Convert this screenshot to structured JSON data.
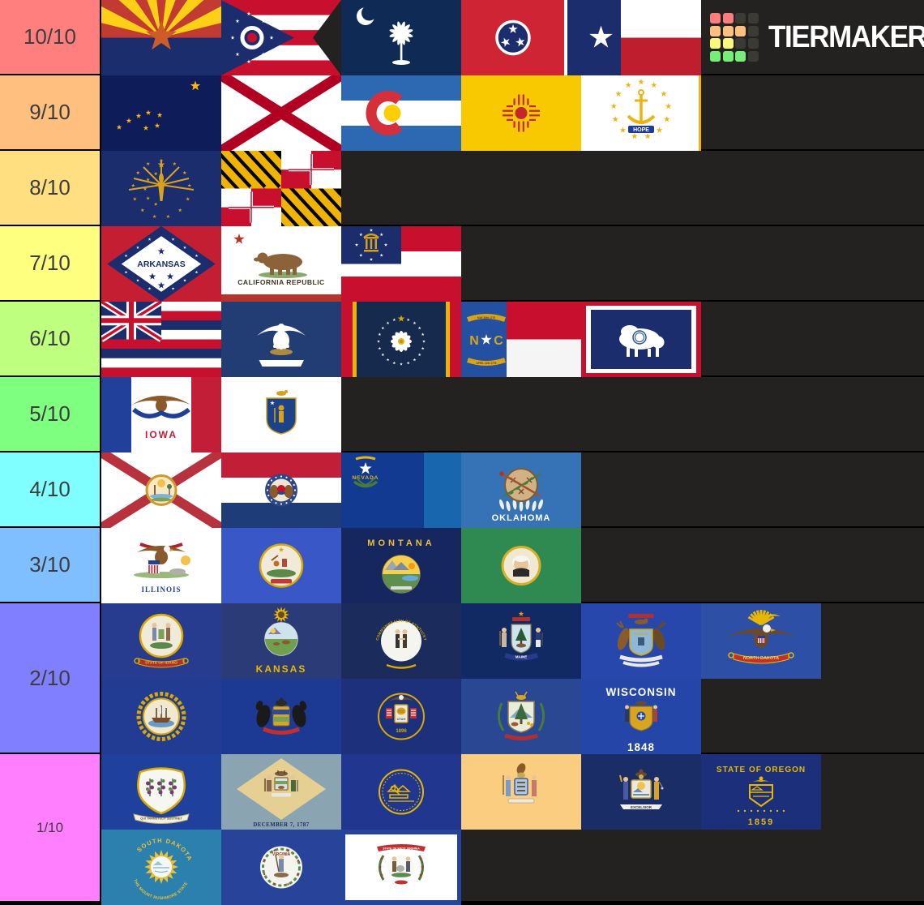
{
  "logo": {
    "brand": "TIERMAKER",
    "grid_colors": [
      "#fb7c7c",
      "#fcbf80",
      "#f8f87e",
      "#77ee77"
    ],
    "grid_dark": "#3b3b36"
  },
  "tiers": [
    {
      "label": "10/10",
      "color": "#ff7f7f",
      "rows": [
        [
          "arizona",
          "ohio",
          "south-carolina",
          "tennessee",
          "texas"
        ]
      ]
    },
    {
      "label": "9/10",
      "color": "#ffbf7f",
      "rows": [
        [
          "alaska",
          "alabama",
          "colorado",
          "new-mexico",
          "rhode-island"
        ]
      ]
    },
    {
      "label": "8/10",
      "color": "#ffdf80",
      "rows": [
        [
          "indiana",
          "maryland"
        ]
      ]
    },
    {
      "label": "7/10",
      "color": "#ffff7f",
      "rows": [
        [
          "arkansas",
          "california",
          "georgia"
        ]
      ]
    },
    {
      "label": "6/10",
      "color": "#bfff7f",
      "rows": [
        [
          "hawaii",
          "louisiana",
          "mississippi",
          "north-carolina",
          "wyoming"
        ]
      ]
    },
    {
      "label": "5/10",
      "color": "#7fff7f",
      "rows": [
        [
          "iowa",
          "massachusetts"
        ]
      ]
    },
    {
      "label": "4/10",
      "color": "#7fffff",
      "rows": [
        [
          "florida",
          "missouri",
          "nevada",
          "oklahoma"
        ]
      ]
    },
    {
      "label": "3/10",
      "color": "#7fbfff",
      "rows": [
        [
          "illinois",
          "minnesota",
          "montana",
          "washington"
        ]
      ]
    },
    {
      "label": "2/10",
      "color": "#7f7fff",
      "rows": [
        [
          "idaho",
          "kansas",
          "kentucky",
          "maine",
          "michigan",
          "north-dakota"
        ],
        [
          "new-hampshire",
          "pennsylvania",
          "utah",
          "vermont",
          "wisconsin"
        ]
      ]
    },
    {
      "label": "1/10",
      "color": "#ff7fff",
      "rows": [
        [
          "connecticut",
          "delaware",
          "nebraska",
          "new-jersey",
          "new-york",
          "oregon"
        ],
        [
          "south-dakota",
          "virginia",
          "west-virginia"
        ]
      ]
    }
  ],
  "flags": {
    "arizona": {
      "name": "Arizona"
    },
    "ohio": {
      "name": "Ohio"
    },
    "south-carolina": {
      "name": "South Carolina"
    },
    "tennessee": {
      "name": "Tennessee"
    },
    "texas": {
      "name": "Texas"
    },
    "alaska": {
      "name": "Alaska"
    },
    "alabama": {
      "name": "Alabama"
    },
    "colorado": {
      "name": "Colorado"
    },
    "new-mexico": {
      "name": "New Mexico"
    },
    "rhode-island": {
      "name": "Rhode Island",
      "text": "HOPE"
    },
    "indiana": {
      "name": "Indiana"
    },
    "maryland": {
      "name": "Maryland"
    },
    "arkansas": {
      "name": "Arkansas",
      "text": "ARKANSAS"
    },
    "california": {
      "name": "California",
      "text": "CALIFORNIA REPUBLIC"
    },
    "georgia": {
      "name": "Georgia"
    },
    "hawaii": {
      "name": "Hawaii"
    },
    "louisiana": {
      "name": "Louisiana"
    },
    "mississippi": {
      "name": "Mississippi"
    },
    "north-carolina": {
      "name": "North Carolina",
      "letters_n": "N",
      "letters_c": "C",
      "ribbon_top": "MAY 20th 1775",
      "ribbon_bottom": "APRIL 12th 1776"
    },
    "wyoming": {
      "name": "Wyoming"
    },
    "iowa": {
      "name": "Iowa",
      "text": "IOWA"
    },
    "massachusetts": {
      "name": "Massachusetts"
    },
    "florida": {
      "name": "Florida"
    },
    "missouri": {
      "name": "Missouri"
    },
    "nevada": {
      "name": "Nevada",
      "text": "NEVADA"
    },
    "oklahoma": {
      "name": "Oklahoma",
      "text": "OKLAHOMA"
    },
    "illinois": {
      "name": "Illinois",
      "text": "ILLINOIS"
    },
    "minnesota": {
      "name": "Minnesota"
    },
    "montana": {
      "name": "Montana",
      "text": "MONTANA"
    },
    "washington": {
      "name": "Washington"
    },
    "idaho": {
      "name": "Idaho",
      "text": "STATE OF IDAHO"
    },
    "kansas": {
      "name": "Kansas",
      "text": "KANSAS"
    },
    "kentucky": {
      "name": "Kentucky",
      "text": "COMMONWEALTH OF KENTUCKY"
    },
    "maine": {
      "name": "Maine",
      "text": "MAINE"
    },
    "michigan": {
      "name": "Michigan",
      "text": "TUEBOR"
    },
    "north-dakota": {
      "name": "North Dakota",
      "text": "NORTH DAKOTA"
    },
    "new-hampshire": {
      "name": "New Hampshire"
    },
    "pennsylvania": {
      "name": "Pennsylvania"
    },
    "utah": {
      "name": "Utah",
      "text": "UTAH",
      "year": "1896"
    },
    "vermont": {
      "name": "Vermont"
    },
    "wisconsin": {
      "name": "Wisconsin",
      "text": "WISCONSIN",
      "year": "1848"
    },
    "connecticut": {
      "name": "Connecticut",
      "text": "QUI TRANSTULIT SUSTINET"
    },
    "delaware": {
      "name": "Delaware",
      "text": "DECEMBER 7, 1787"
    },
    "nebraska": {
      "name": "Nebraska"
    },
    "new-jersey": {
      "name": "New Jersey"
    },
    "new-york": {
      "name": "New York",
      "text": "EXCELSIOR"
    },
    "oregon": {
      "name": "Oregon",
      "text": "STATE OF OREGON",
      "year": "1859"
    },
    "south-dakota": {
      "name": "South Dakota",
      "text": "SOUTH DAKOTA",
      "subtext": "THE MOUNT RUSHMORE STATE"
    },
    "virginia": {
      "name": "Virginia",
      "text": "VIRGINIA"
    },
    "west-virginia": {
      "name": "West Virginia",
      "text": "STATE OF WEST VIRGINIA"
    }
  }
}
